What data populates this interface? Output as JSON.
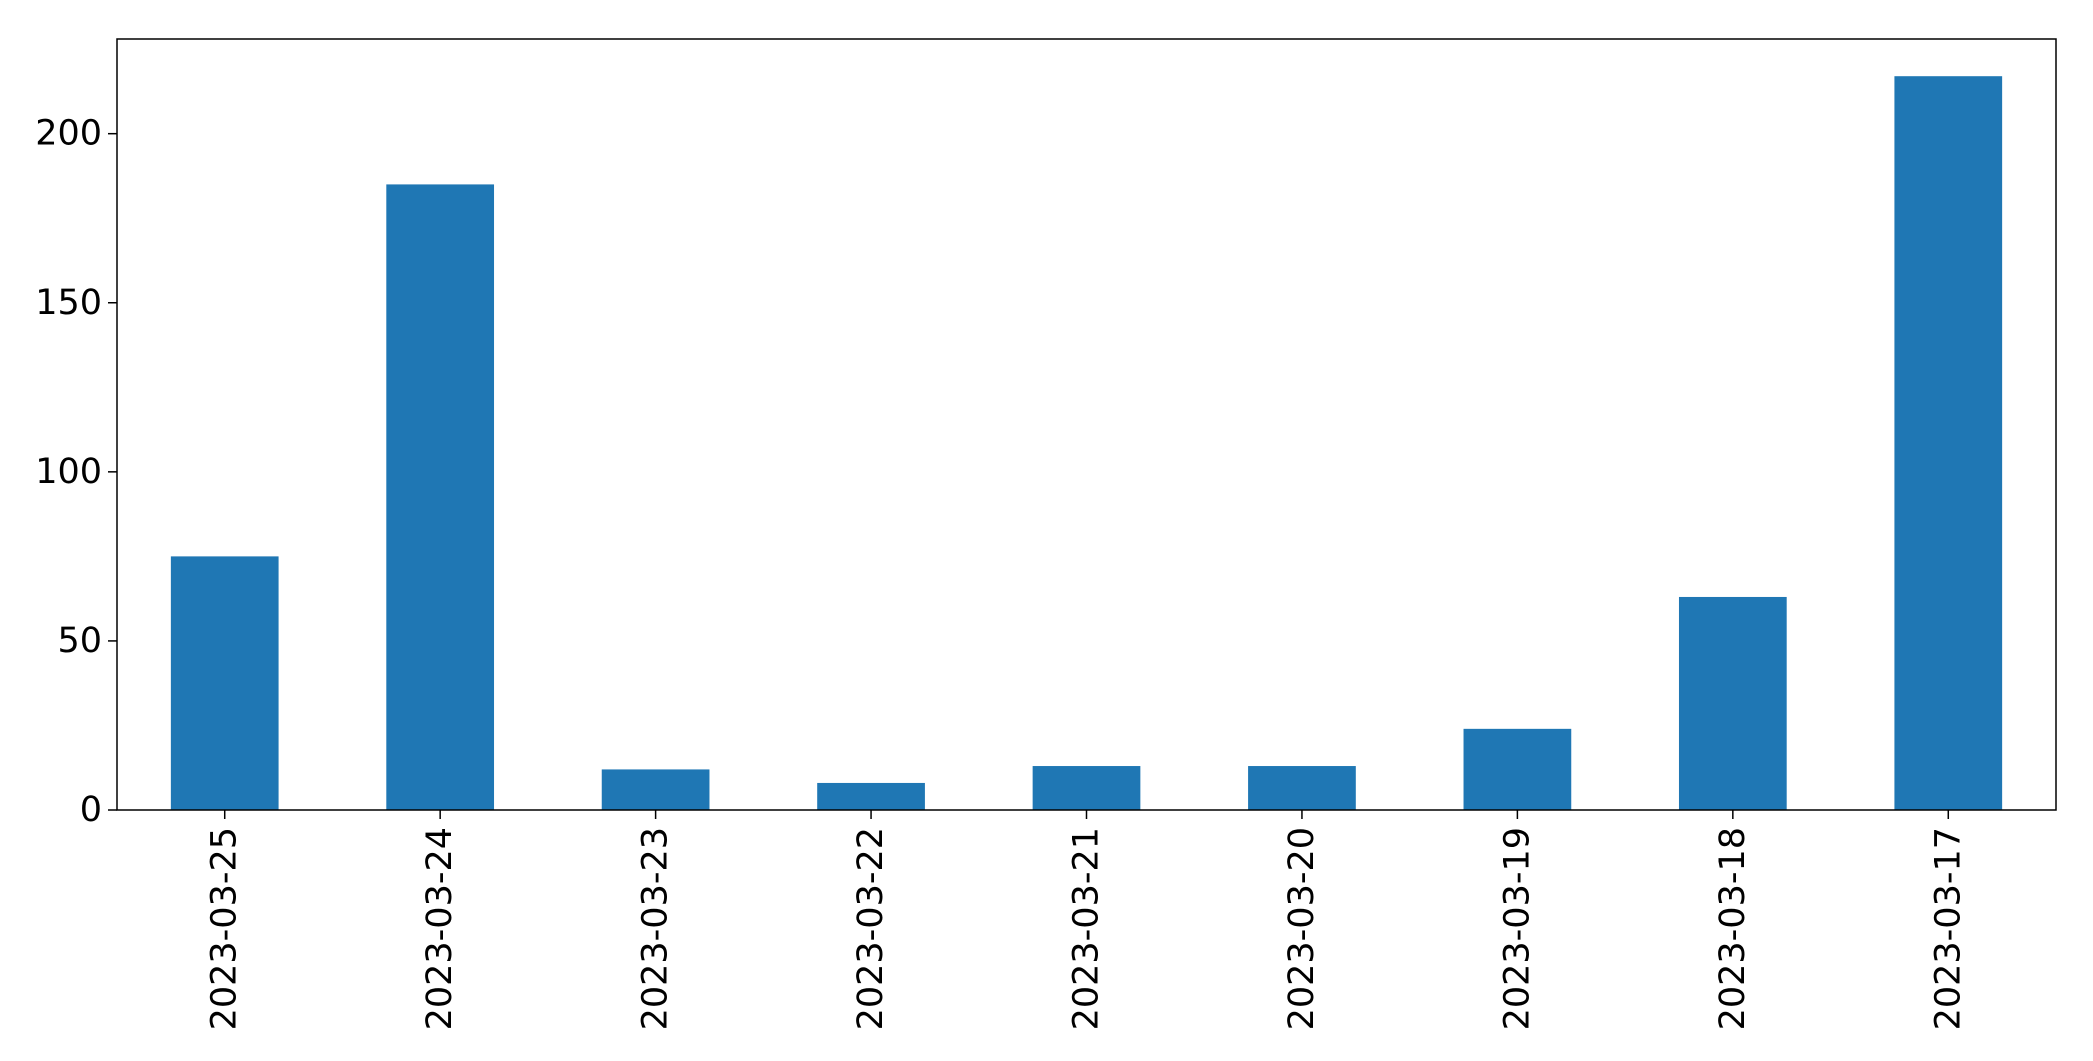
{
  "chart_data": {
    "type": "bar",
    "title": "",
    "xlabel": "",
    "ylabel": "",
    "categories": [
      "2023-03-25",
      "2023-03-24",
      "2023-03-23",
      "2023-03-22",
      "2023-03-21",
      "2023-03-20",
      "2023-03-19",
      "2023-03-18",
      "2023-03-17"
    ],
    "values": [
      75,
      185,
      12,
      8,
      13,
      13,
      24,
      63,
      217
    ],
    "ylim": [
      0,
      228
    ],
    "yticks": [
      0,
      50,
      100,
      150,
      200
    ],
    "grid": false,
    "bar_color": "#1f77b4"
  }
}
